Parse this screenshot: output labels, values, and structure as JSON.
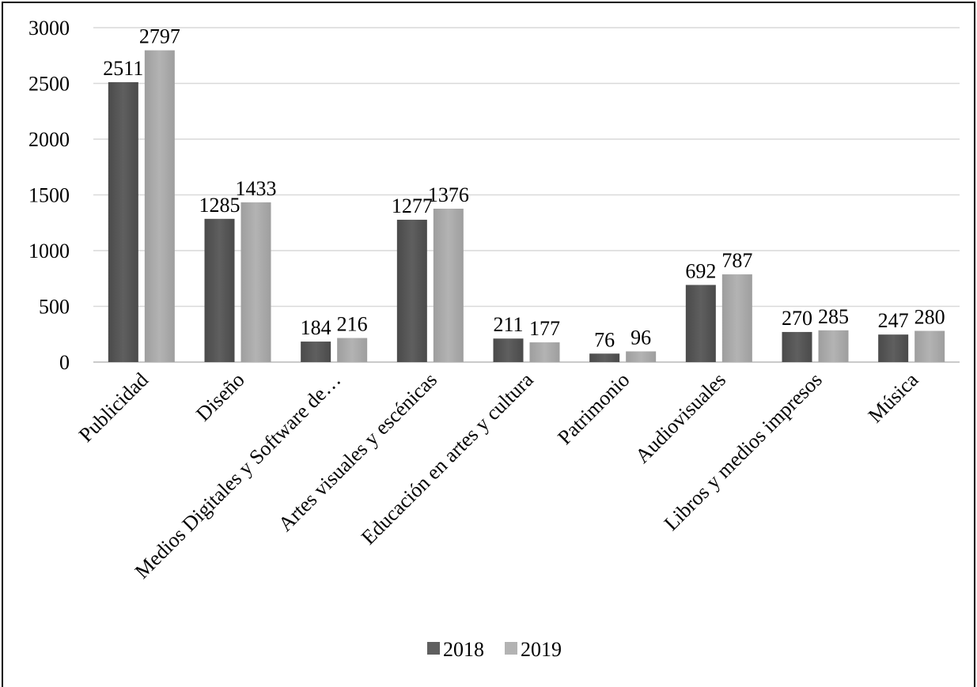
{
  "chart_data": {
    "type": "bar",
    "categories": [
      "Publicidad",
      "Diseño",
      "Medios Digitales y Software de…",
      "Artes visuales y escénicas",
      "Educación en artes y cultura",
      "Patrimonio",
      "Audiovisuales",
      "Libros y medios impresos",
      "Música"
    ],
    "series": [
      {
        "name": "2018",
        "color": "#5f5f5f",
        "values": [
          2511,
          1285,
          184,
          1277,
          211,
          76,
          692,
          270,
          247
        ]
      },
      {
        "name": "2019",
        "color": "#b3b3b3",
        "values": [
          2797,
          1433,
          216,
          1376,
          177,
          96,
          787,
          285,
          280
        ]
      }
    ],
    "title": "",
    "xlabel": "",
    "ylabel": "",
    "ylim": [
      0,
      3000
    ],
    "yticks": [
      0,
      500,
      1000,
      1500,
      2000,
      2500,
      3000
    ],
    "grid": true,
    "legend": "bottom",
    "data_labels": true
  }
}
